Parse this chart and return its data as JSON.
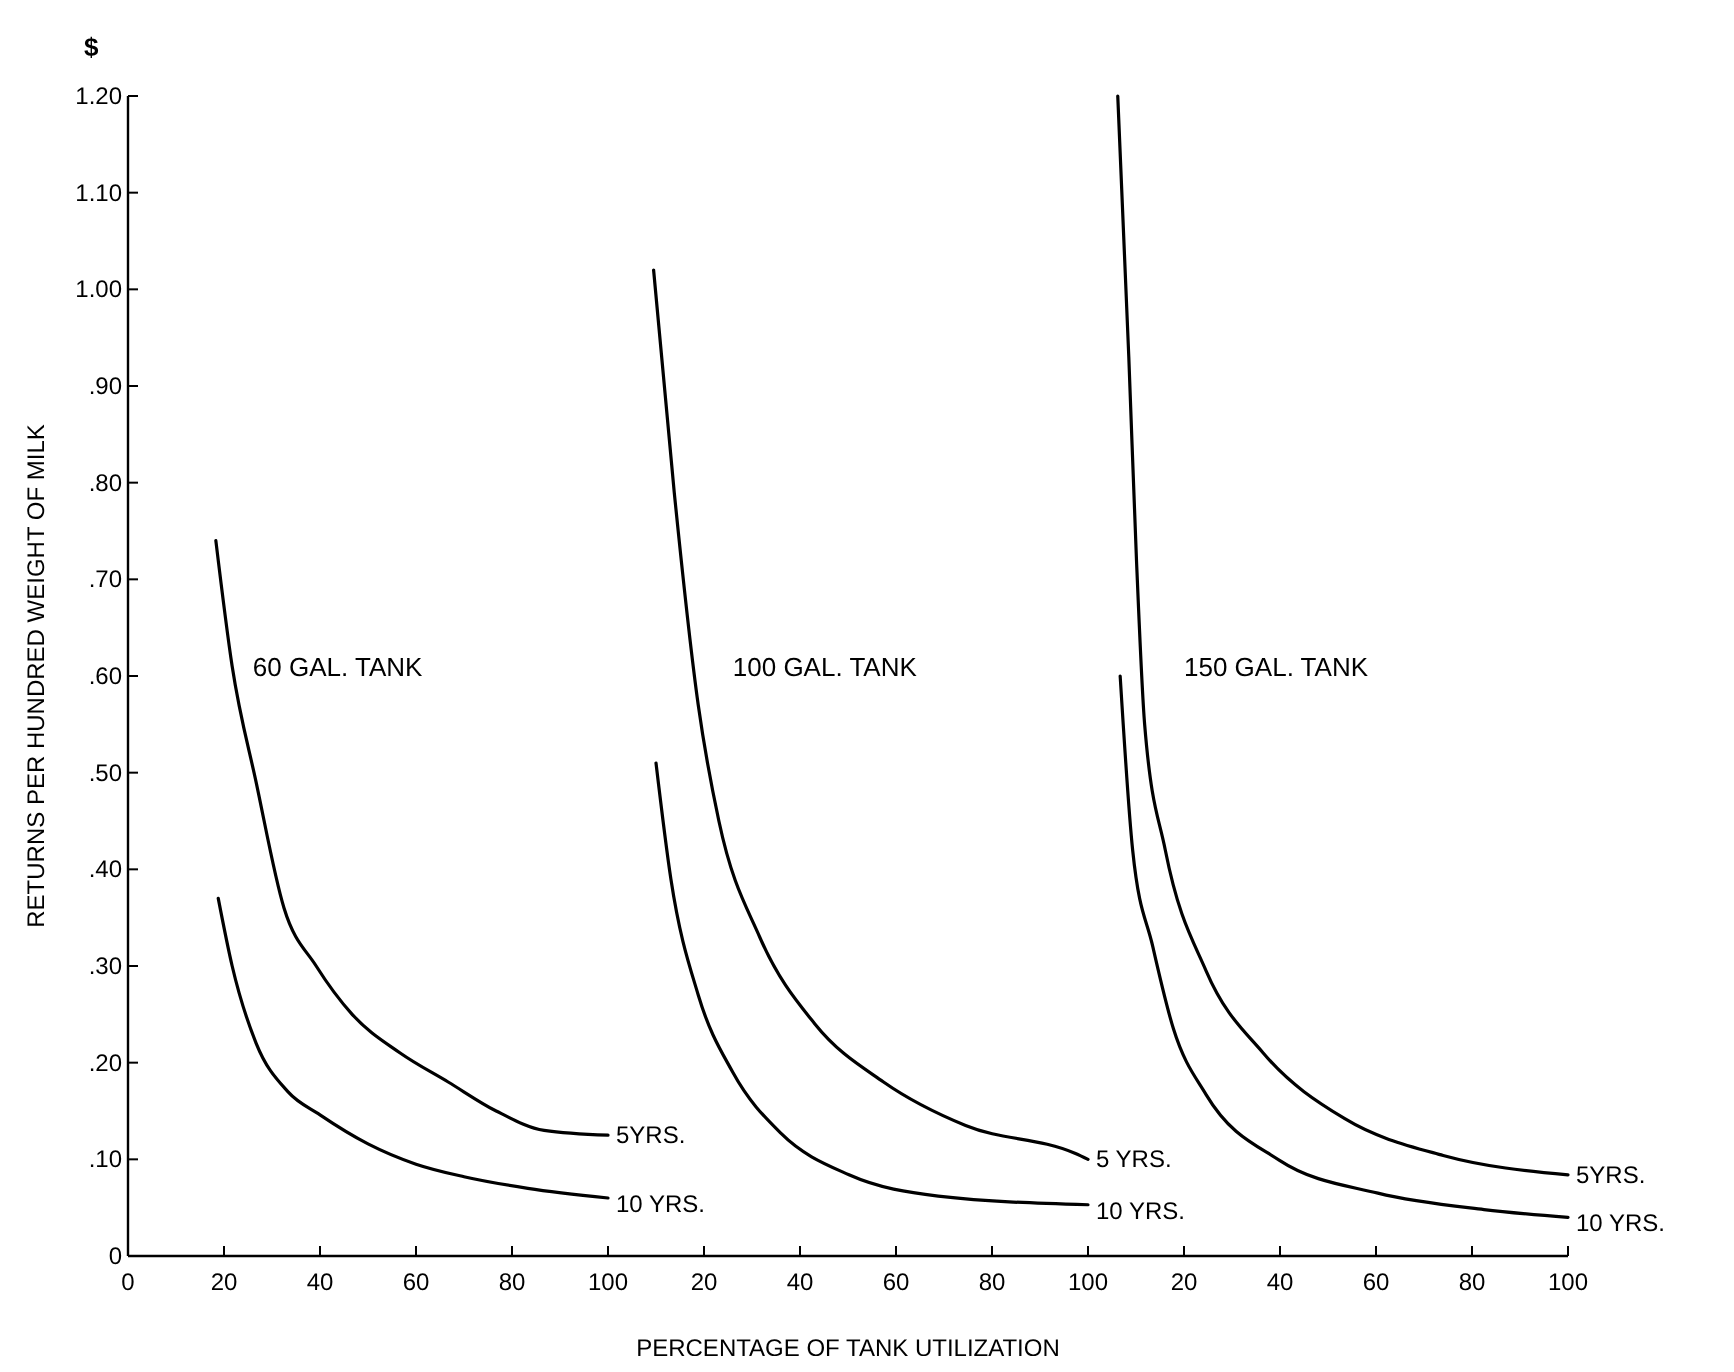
{
  "chart_data": [
    {
      "type": "line",
      "ylabel": "RETURNS PER HUNDRED WEIGHT OF MILK",
      "annotations": [
        "$",
        "60 GAL. TANK"
      ],
      "xlim": [
        0,
        100
      ],
      "xticks": [
        0,
        20,
        40,
        60,
        80,
        100
      ],
      "ylim": [
        0,
        1.2
      ],
      "yticks": [
        {
          "value": 0,
          "label": "0"
        },
        {
          "value": 0.1,
          "label": ".10"
        },
        {
          "value": 0.2,
          "label": ".20"
        },
        {
          "value": 0.3,
          "label": ".30"
        },
        {
          "value": 0.4,
          "label": ".40"
        },
        {
          "value": 0.5,
          "label": ".50"
        },
        {
          "value": 0.6,
          "label": ".60"
        },
        {
          "value": 0.7,
          "label": ".70"
        },
        {
          "value": 0.8,
          "label": ".80"
        },
        {
          "value": 0.9,
          "label": ".90"
        },
        {
          "value": 1.0,
          "label": "1.00"
        },
        {
          "value": 1.1,
          "label": "1.10"
        },
        {
          "value": 1.2,
          "label": "1.20"
        }
      ],
      "line_style": "solid",
      "legend": false,
      "series": [
        {
          "name": "5YRS.",
          "color": "#000000",
          "x": [
            18.3,
            21.7,
            26.7,
            32.5,
            39.2,
            46.7,
            56.7,
            66.7,
            76.7,
            86.7,
            100
          ],
          "values": [
            0.74,
            0.61,
            0.49,
            0.36,
            0.3,
            0.25,
            0.21,
            0.18,
            0.15,
            0.13,
            0.125
          ]
        },
        {
          "name": "10 YRS.",
          "color": "#000000",
          "x": [
            18.8,
            21.7,
            26.7,
            33.3,
            40,
            50,
            60,
            70,
            83.3,
            100
          ],
          "values": [
            0.37,
            0.3,
            0.22,
            0.17,
            0.146,
            0.116,
            0.095,
            0.082,
            0.07,
            0.06
          ]
        }
      ]
    },
    {
      "type": "line",
      "xlabel": "PERCENTAGE OF TANK UTILIZATION",
      "annotations": [
        "100 GAL. TANK"
      ],
      "xlim": [
        0,
        100
      ],
      "xticks": [
        20,
        40,
        60,
        80,
        100
      ],
      "ylim": [
        0,
        1.2
      ],
      "tick_labels": "x",
      "line_style": "solid",
      "legend": false,
      "series": [
        {
          "name": "5 YRS.",
          "color": "#000000",
          "x": [
            9.5,
            13.8,
            18.8,
            23.1,
            31.6,
            43.1,
            57.4,
            74.5,
            97.4,
            100
          ],
          "values": [
            1.02,
            0.79,
            0.57,
            0.45,
            0.33,
            0.24,
            0.18,
            0.135,
            0.106,
            0.1
          ]
        },
        {
          "name": "10 YRS.",
          "color": "#000000",
          "x": [
            10,
            13.1,
            18.8,
            26,
            36,
            50.2,
            68.8,
            100
          ],
          "values": [
            0.51,
            0.39,
            0.27,
            0.19,
            0.127,
            0.084,
            0.062,
            0.053
          ]
        }
      ]
    },
    {
      "type": "line",
      "annotations": [
        "150 GAL. TANK"
      ],
      "xlim": [
        0,
        100
      ],
      "xticks": [
        20,
        40,
        60,
        80,
        100
      ],
      "ylim": [
        0,
        1.2
      ],
      "tick_labels": "x",
      "line_style": "solid",
      "legend": false,
      "series": [
        {
          "name": "5YRS.",
          "color": "#000000",
          "x": [
            6.2,
            8.5,
            10.1,
            11.8,
            16.1,
            24.6,
            36.5,
            53.5,
            74,
            100
          ],
          "values": [
            1.2,
            0.93,
            0.72,
            0.55,
            0.42,
            0.295,
            0.21,
            0.142,
            0.104,
            0.084
          ]
        },
        {
          "name": "10 YRS.",
          "color": "#000000",
          "x": [
            6.7,
            9.3,
            13.5,
            17.8,
            24.6,
            39.9,
            60.4,
            82.5,
            100
          ],
          "values": [
            0.6,
            0.42,
            0.32,
            0.235,
            0.167,
            0.099,
            0.065,
            0.048,
            0.04
          ]
        }
      ]
    }
  ]
}
